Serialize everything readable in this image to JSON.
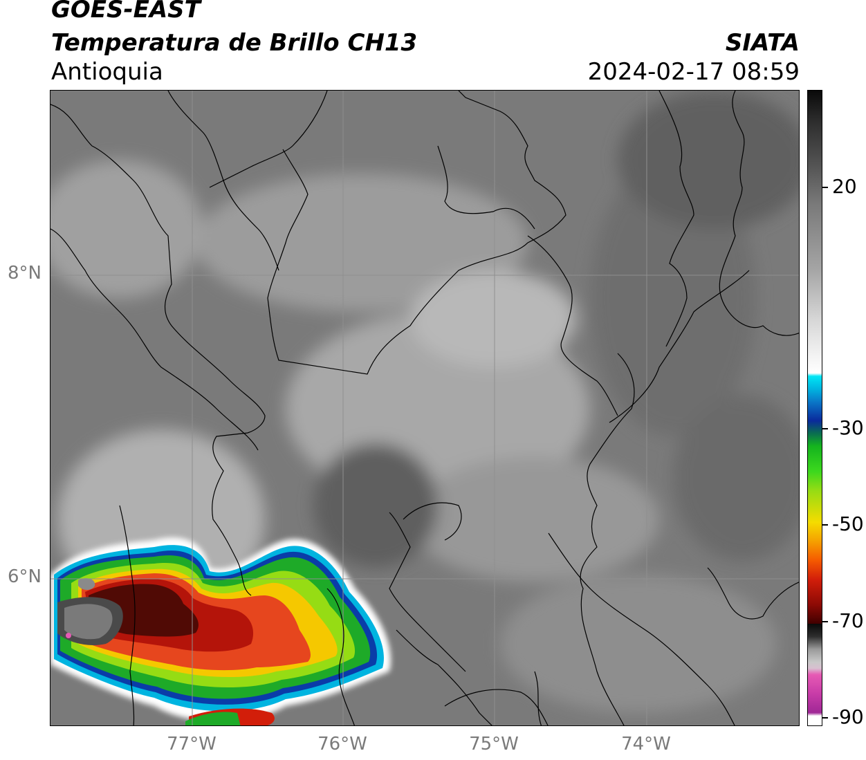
{
  "header": {
    "satellite": "GOES-EAST",
    "product": "Temperatura de Brillo CH13",
    "region": "Antioquia",
    "agency": "SIATA",
    "timestamp": "2024-02-17 08:59"
  },
  "axes": {
    "lat_labels": [
      "8°N",
      "6°N"
    ],
    "lon_labels": [
      "77°W",
      "76°W",
      "75°W",
      "74°W"
    ]
  },
  "colorbar": {
    "tick_labels": [
      "20",
      "-30",
      "-50",
      "-70",
      "-90"
    ],
    "colors": {
      "warm_gray_dark": "#2a2a2a",
      "mid_gray": "#7d7d7d",
      "light_gray": "#e0e0e0",
      "cyan": "#00c8e6",
      "blue": "#0a2a9c",
      "green": "#14b41e",
      "yellow": "#f5dc00",
      "orange": "#f58c00",
      "red": "#d21e0a",
      "dark_red": "#500000",
      "black": "#0a0a0a",
      "pink": "#e65ab4",
      "purple": "#a02896"
    }
  }
}
